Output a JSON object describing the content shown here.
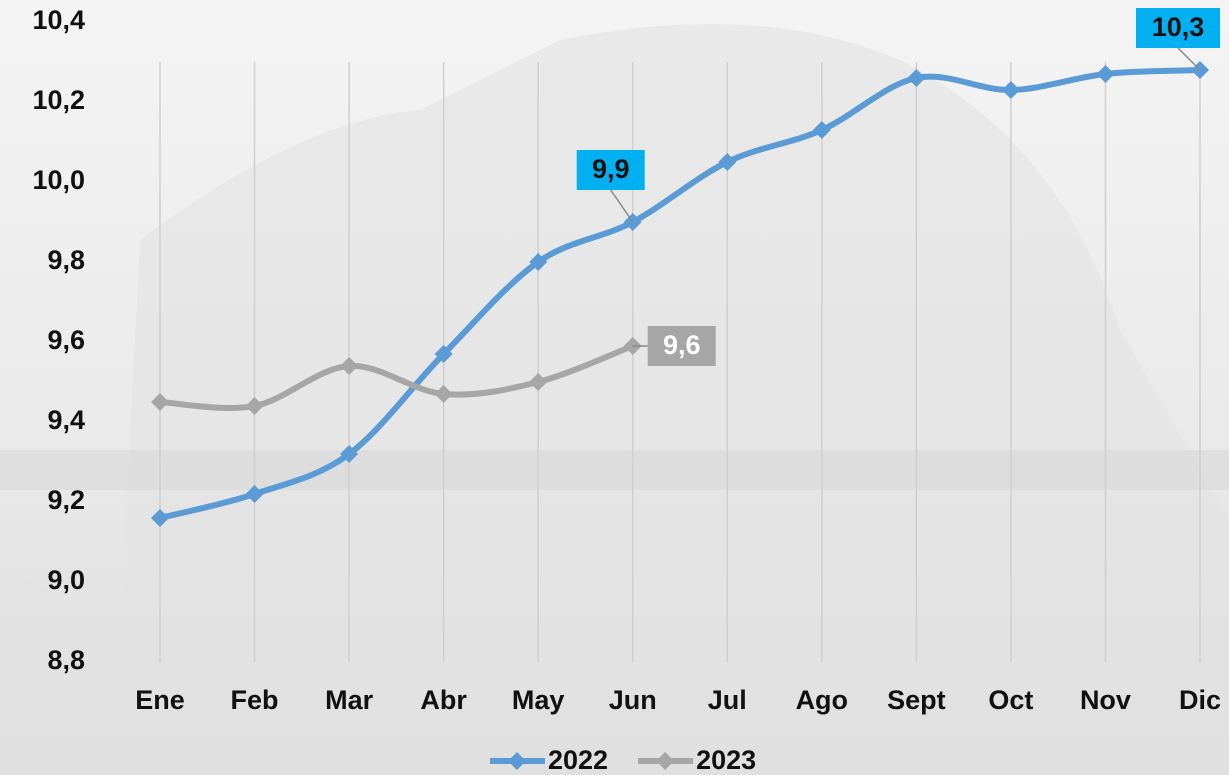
{
  "chart_data": {
    "type": "line",
    "categories": [
      "Ene",
      "Feb",
      "Mar",
      "Abr",
      "May",
      "Jun",
      "Jul",
      "Ago",
      "Sept",
      "Oct",
      "Nov",
      "Dic"
    ],
    "series": [
      {
        "name": "2022",
        "color": "#5b9bd5",
        "label_box_color": "#00b0f0",
        "label_text_color": "#111111",
        "values": [
          9.16,
          9.22,
          9.32,
          9.57,
          9.8,
          9.9,
          10.05,
          10.13,
          10.26,
          10.23,
          10.27,
          10.28
        ],
        "value_labels": [
          null,
          null,
          null,
          null,
          null,
          "9,9",
          null,
          null,
          null,
          null,
          null,
          "10,3"
        ]
      },
      {
        "name": "2023",
        "color": "#a6a6a6",
        "label_box_color": "#a6a6a6",
        "label_text_color": "#ffffff",
        "values": [
          9.45,
          9.44,
          9.54,
          9.47,
          9.5,
          9.59,
          null,
          null,
          null,
          null,
          null,
          null
        ],
        "value_labels": [
          null,
          null,
          null,
          null,
          null,
          "9,6",
          null,
          null,
          null,
          null,
          null,
          null
        ]
      }
    ],
    "ylim": [
      8.8,
      10.4
    ],
    "yticks": [
      {
        "value": 8.8,
        "label": "8,8"
      },
      {
        "value": 9.0,
        "label": "9,0"
      },
      {
        "value": 9.2,
        "label": "9,2"
      },
      {
        "value": 9.4,
        "label": "9,4"
      },
      {
        "value": 9.6,
        "label": "9,6"
      },
      {
        "value": 9.8,
        "label": "9,8"
      },
      {
        "value": 10.0,
        "label": "10,0"
      },
      {
        "value": 10.2,
        "label": "10,2"
      },
      {
        "value": 10.4,
        "label": "10,4"
      }
    ],
    "grid": true,
    "legend": "bottom"
  }
}
